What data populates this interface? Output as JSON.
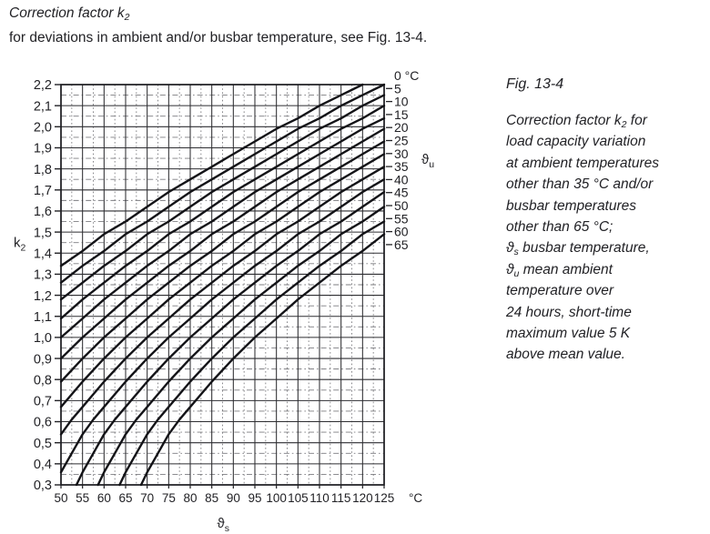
{
  "header": {
    "title_segments": [
      {
        "t": "Correction factor k"
      },
      {
        "t": "2",
        "sub": true
      }
    ],
    "subtitle": "for deviations in ambient and/or busbar temperature, see Fig. 13-4."
  },
  "chart_data": {
    "type": "line",
    "title": "Correction factor k2 for deviations in ambient and/or busbar temperature",
    "xlabel": {
      "symbol": "ϑ",
      "sub": "s"
    },
    "x_unit": "°C",
    "ylabel": {
      "symbol": "k",
      "sub": "2"
    },
    "family_label": {
      "symbol": "ϑ",
      "sub": "u"
    },
    "curve_unit": "°C",
    "xlim": [
      50,
      125
    ],
    "ylim": [
      0.3,
      2.2
    ],
    "x_ticks": [
      50,
      55,
      60,
      65,
      70,
      75,
      80,
      85,
      90,
      95,
      100,
      105,
      110,
      115,
      120,
      125
    ],
    "y_ticks": [
      2.2,
      2.1,
      2.0,
      1.9,
      1.8,
      1.7,
      1.6,
      1.5,
      1.4,
      1.3,
      1.2,
      1.1,
      1.0,
      0.9,
      0.8,
      0.7,
      0.6,
      0.5,
      0.4,
      0.3
    ],
    "grid": {
      "x_minor_step": 2.5,
      "y_minor_step": 0.05,
      "minor_style": "dash-dot"
    },
    "legend_position": "right-edge-labels",
    "series": [
      {
        "theta_u": 0,
        "label": "0",
        "points": [
          [
            50,
            1.34
          ],
          [
            55,
            1.41
          ],
          [
            60,
            1.49
          ],
          [
            65,
            1.55
          ],
          [
            70,
            1.62
          ],
          [
            75,
            1.69
          ],
          [
            80,
            1.75
          ],
          [
            85,
            1.81
          ],
          [
            90,
            1.87
          ],
          [
            95,
            1.93
          ],
          [
            100,
            1.99
          ],
          [
            105,
            2.04
          ],
          [
            110,
            2.1
          ],
          [
            115,
            2.15
          ],
          [
            120,
            2.2
          ]
        ]
      },
      {
        "theta_u": 5,
        "label": "5",
        "points": [
          [
            50,
            1.26
          ],
          [
            55,
            1.34
          ],
          [
            60,
            1.41
          ],
          [
            65,
            1.49
          ],
          [
            70,
            1.55
          ],
          [
            75,
            1.62
          ],
          [
            80,
            1.69
          ],
          [
            85,
            1.75
          ],
          [
            90,
            1.81
          ],
          [
            95,
            1.87
          ],
          [
            100,
            1.93
          ],
          [
            105,
            1.99
          ],
          [
            110,
            2.04
          ],
          [
            115,
            2.1
          ],
          [
            120,
            2.15
          ],
          [
            125,
            2.2
          ]
        ]
      },
      {
        "theta_u": 10,
        "label": "10",
        "points": [
          [
            50,
            1.18
          ],
          [
            55,
            1.26
          ],
          [
            60,
            1.34
          ],
          [
            65,
            1.41
          ],
          [
            70,
            1.49
          ],
          [
            75,
            1.55
          ],
          [
            80,
            1.62
          ],
          [
            85,
            1.69
          ],
          [
            90,
            1.75
          ],
          [
            95,
            1.81
          ],
          [
            100,
            1.87
          ],
          [
            105,
            1.93
          ],
          [
            110,
            1.99
          ],
          [
            115,
            2.04
          ],
          [
            120,
            2.1
          ],
          [
            125,
            2.15
          ]
        ]
      },
      {
        "theta_u": 15,
        "label": "15",
        "points": [
          [
            50,
            1.09
          ],
          [
            55,
            1.18
          ],
          [
            60,
            1.26
          ],
          [
            65,
            1.34
          ],
          [
            70,
            1.41
          ],
          [
            75,
            1.49
          ],
          [
            80,
            1.55
          ],
          [
            85,
            1.62
          ],
          [
            90,
            1.69
          ],
          [
            95,
            1.75
          ],
          [
            100,
            1.81
          ],
          [
            105,
            1.87
          ],
          [
            110,
            1.93
          ],
          [
            115,
            1.99
          ],
          [
            120,
            2.04
          ],
          [
            125,
            2.1
          ]
        ]
      },
      {
        "theta_u": 20,
        "label": "20",
        "points": [
          [
            50,
            1.0
          ],
          [
            55,
            1.09
          ],
          [
            60,
            1.18
          ],
          [
            65,
            1.26
          ],
          [
            70,
            1.34
          ],
          [
            75,
            1.41
          ],
          [
            80,
            1.49
          ],
          [
            85,
            1.55
          ],
          [
            90,
            1.62
          ],
          [
            95,
            1.69
          ],
          [
            100,
            1.75
          ],
          [
            105,
            1.81
          ],
          [
            110,
            1.87
          ],
          [
            115,
            1.93
          ],
          [
            120,
            1.99
          ],
          [
            125,
            2.04
          ]
        ]
      },
      {
        "theta_u": 25,
        "label": "25",
        "points": [
          [
            50,
            0.9
          ],
          [
            55,
            1.0
          ],
          [
            60,
            1.09
          ],
          [
            65,
            1.18
          ],
          [
            70,
            1.26
          ],
          [
            75,
            1.34
          ],
          [
            80,
            1.41
          ],
          [
            85,
            1.49
          ],
          [
            90,
            1.55
          ],
          [
            95,
            1.62
          ],
          [
            100,
            1.69
          ],
          [
            105,
            1.75
          ],
          [
            110,
            1.81
          ],
          [
            115,
            1.87
          ],
          [
            120,
            1.93
          ],
          [
            125,
            1.99
          ]
        ]
      },
      {
        "theta_u": 30,
        "label": "30",
        "points": [
          [
            50,
            0.79
          ],
          [
            55,
            0.9
          ],
          [
            60,
            1.0
          ],
          [
            65,
            1.09
          ],
          [
            70,
            1.18
          ],
          [
            75,
            1.26
          ],
          [
            80,
            1.34
          ],
          [
            85,
            1.41
          ],
          [
            90,
            1.49
          ],
          [
            95,
            1.55
          ],
          [
            100,
            1.62
          ],
          [
            105,
            1.69
          ],
          [
            110,
            1.75
          ],
          [
            115,
            1.81
          ],
          [
            120,
            1.87
          ],
          [
            125,
            1.93
          ]
        ]
      },
      {
        "theta_u": 35,
        "label": "35",
        "points": [
          [
            50,
            0.67
          ],
          [
            55,
            0.79
          ],
          [
            60,
            0.9
          ],
          [
            65,
            1.0
          ],
          [
            70,
            1.09
          ],
          [
            75,
            1.18
          ],
          [
            80,
            1.26
          ],
          [
            85,
            1.34
          ],
          [
            90,
            1.41
          ],
          [
            95,
            1.49
          ],
          [
            100,
            1.55
          ],
          [
            105,
            1.62
          ],
          [
            110,
            1.69
          ],
          [
            115,
            1.75
          ],
          [
            120,
            1.81
          ],
          [
            125,
            1.87
          ]
        ]
      },
      {
        "theta_u": 40,
        "label": "40",
        "points": [
          [
            50,
            0.54
          ],
          [
            52.5,
            0.61
          ],
          [
            55,
            0.67
          ],
          [
            60,
            0.79
          ],
          [
            65,
            0.9
          ],
          [
            70,
            1.0
          ],
          [
            75,
            1.09
          ],
          [
            80,
            1.18
          ],
          [
            85,
            1.26
          ],
          [
            90,
            1.34
          ],
          [
            95,
            1.41
          ],
          [
            100,
            1.49
          ],
          [
            105,
            1.55
          ],
          [
            110,
            1.62
          ],
          [
            115,
            1.69
          ],
          [
            120,
            1.75
          ],
          [
            125,
            1.81
          ]
        ]
      },
      {
        "theta_u": 45,
        "label": "45",
        "points": [
          [
            50,
            0.36
          ],
          [
            52.5,
            0.45
          ],
          [
            55,
            0.54
          ],
          [
            57.5,
            0.61
          ],
          [
            60,
            0.67
          ],
          [
            65,
            0.79
          ],
          [
            70,
            0.9
          ],
          [
            75,
            1.0
          ],
          [
            80,
            1.09
          ],
          [
            85,
            1.18
          ],
          [
            90,
            1.26
          ],
          [
            95,
            1.34
          ],
          [
            100,
            1.41
          ],
          [
            105,
            1.49
          ],
          [
            110,
            1.55
          ],
          [
            115,
            1.62
          ],
          [
            120,
            1.69
          ],
          [
            125,
            1.75
          ]
        ]
      },
      {
        "theta_u": 50,
        "label": "50",
        "points": [
          [
            53.6,
            0.3
          ],
          [
            55,
            0.36
          ],
          [
            57.5,
            0.45
          ],
          [
            60,
            0.54
          ],
          [
            62.5,
            0.61
          ],
          [
            65,
            0.67
          ],
          [
            70,
            0.79
          ],
          [
            75,
            0.9
          ],
          [
            80,
            1.0
          ],
          [
            85,
            1.09
          ],
          [
            90,
            1.18
          ],
          [
            95,
            1.26
          ],
          [
            100,
            1.34
          ],
          [
            105,
            1.41
          ],
          [
            110,
            1.49
          ],
          [
            115,
            1.55
          ],
          [
            120,
            1.62
          ],
          [
            125,
            1.69
          ]
        ]
      },
      {
        "theta_u": 55,
        "label": "55",
        "points": [
          [
            58.6,
            0.3
          ],
          [
            60,
            0.36
          ],
          [
            62.5,
            0.45
          ],
          [
            65,
            0.54
          ],
          [
            67.5,
            0.61
          ],
          [
            70,
            0.67
          ],
          [
            75,
            0.79
          ],
          [
            80,
            0.9
          ],
          [
            85,
            1.0
          ],
          [
            90,
            1.09
          ],
          [
            95,
            1.18
          ],
          [
            100,
            1.26
          ],
          [
            105,
            1.34
          ],
          [
            110,
            1.41
          ],
          [
            115,
            1.49
          ],
          [
            120,
            1.55
          ],
          [
            125,
            1.62
          ]
        ]
      },
      {
        "theta_u": 60,
        "label": "60",
        "points": [
          [
            63.6,
            0.3
          ],
          [
            65,
            0.36
          ],
          [
            67.5,
            0.45
          ],
          [
            70,
            0.54
          ],
          [
            72.5,
            0.61
          ],
          [
            75,
            0.67
          ],
          [
            80,
            0.79
          ],
          [
            85,
            0.9
          ],
          [
            90,
            1.0
          ],
          [
            95,
            1.09
          ],
          [
            100,
            1.18
          ],
          [
            105,
            1.26
          ],
          [
            110,
            1.34
          ],
          [
            115,
            1.41
          ],
          [
            120,
            1.49
          ],
          [
            125,
            1.55
          ]
        ]
      },
      {
        "theta_u": 65,
        "label": "65",
        "points": [
          [
            68.6,
            0.3
          ],
          [
            70,
            0.36
          ],
          [
            72.5,
            0.45
          ],
          [
            75,
            0.54
          ],
          [
            77.5,
            0.61
          ],
          [
            80,
            0.67
          ],
          [
            85,
            0.79
          ],
          [
            90,
            0.9
          ],
          [
            95,
            1.0
          ],
          [
            100,
            1.09
          ],
          [
            105,
            1.18
          ],
          [
            110,
            1.26
          ],
          [
            115,
            1.34
          ],
          [
            120,
            1.41
          ],
          [
            125,
            1.49
          ]
        ]
      }
    ]
  },
  "caption": {
    "heading": "Fig. 13-4",
    "lines": [
      [
        {
          "t": "Correction factor k"
        },
        {
          "t": "2",
          "sub": true
        },
        {
          "t": " for"
        }
      ],
      [
        {
          "t": "load capacity variation"
        }
      ],
      [
        {
          "t": "at ambient temperatures"
        }
      ],
      [
        {
          "t": "other than 35 °C and/or"
        }
      ],
      [
        {
          "t": "busbar temperatures"
        }
      ],
      [
        {
          "t": "other than 65 °C;"
        }
      ],
      [
        {
          "t": "ϑ"
        },
        {
          "t": "s",
          "sub": true
        },
        {
          "t": " busbar temperature,"
        }
      ],
      [
        {
          "t": "ϑ"
        },
        {
          "t": "u",
          "sub": true
        },
        {
          "t": " mean ambient"
        }
      ],
      [
        {
          "t": "temperature over"
        }
      ],
      [
        {
          "t": "24 hours, short-time"
        }
      ],
      [
        {
          "t": "maximum value 5 K"
        }
      ],
      [
        {
          "t": "above mean value."
        }
      ]
    ]
  }
}
